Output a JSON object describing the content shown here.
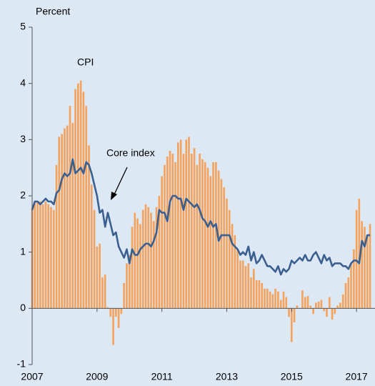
{
  "chart_data": {
    "type": "bar",
    "y_label": "Percent",
    "xlim": [
      2007,
      2017.57
    ],
    "xticks": [
      2007,
      2009,
      2011,
      2013,
      2015,
      2017
    ],
    "ylim": [
      -1,
      5
    ],
    "yticks": [
      -1,
      0,
      1,
      2,
      3,
      4,
      5
    ],
    "x": [
      2007,
      2007.083,
      2007.167,
      2007.25,
      2007.333,
      2007.417,
      2007.5,
      2007.583,
      2007.667,
      2007.75,
      2007.833,
      2007.917,
      2008,
      2008.083,
      2008.167,
      2008.25,
      2008.333,
      2008.417,
      2008.5,
      2008.583,
      2008.667,
      2008.75,
      2008.833,
      2008.917,
      2009,
      2009.083,
      2009.167,
      2009.25,
      2009.333,
      2009.417,
      2009.5,
      2009.583,
      2009.667,
      2009.75,
      2009.833,
      2009.917,
      2010,
      2010.083,
      2010.167,
      2010.25,
      2010.333,
      2010.417,
      2010.5,
      2010.583,
      2010.667,
      2010.75,
      2010.833,
      2010.917,
      2011,
      2011.083,
      2011.167,
      2011.25,
      2011.333,
      2011.417,
      2011.5,
      2011.583,
      2011.667,
      2011.75,
      2011.833,
      2011.917,
      2012,
      2012.083,
      2012.167,
      2012.25,
      2012.333,
      2012.417,
      2012.5,
      2012.583,
      2012.667,
      2012.75,
      2012.833,
      2012.917,
      2013,
      2013.083,
      2013.167,
      2013.25,
      2013.333,
      2013.417,
      2013.5,
      2013.583,
      2013.667,
      2013.75,
      2013.833,
      2013.917,
      2014,
      2014.083,
      2014.167,
      2014.25,
      2014.333,
      2014.417,
      2014.5,
      2014.583,
      2014.667,
      2014.75,
      2014.833,
      2014.917,
      2015,
      2015.083,
      2015.167,
      2015.25,
      2015.333,
      2015.417,
      2015.5,
      2015.583,
      2015.667,
      2015.75,
      2015.833,
      2015.917,
      2016,
      2016.083,
      2016.167,
      2016.25,
      2016.333,
      2016.417,
      2016.5,
      2016.583,
      2016.667,
      2016.75,
      2016.833,
      2016.917,
      2017,
      2017.083,
      2017.167,
      2017.25,
      2017.333,
      2017.417
    ],
    "series": [
      {
        "name": "CPI",
        "type": "bar",
        "color": "#f4a35e",
        "values": [
          1.8,
          1.9,
          1.9,
          1.9,
          1.85,
          1.9,
          1.85,
          1.8,
          1.75,
          2.55,
          3.05,
          3.1,
          3.2,
          3.25,
          3.6,
          3.3,
          3.9,
          4.0,
          4.05,
          3.85,
          3.6,
          2.9,
          2.2,
          1.75,
          1.1,
          1.15,
          0.55,
          0.6,
          0.02,
          -0.15,
          -0.65,
          -0.15,
          -0.35,
          -0.1,
          0.45,
          0.8,
          0.95,
          1.45,
          1.7,
          1.6,
          1.5,
          1.75,
          1.85,
          1.8,
          1.7,
          1.55,
          1.8,
          2.0,
          2.35,
          2.55,
          2.7,
          2.8,
          2.75,
          2.6,
          2.95,
          3.0,
          2.75,
          3.0,
          3.05,
          2.75,
          2.85,
          2.55,
          2.75,
          2.65,
          2.6,
          2.5,
          2.35,
          2.6,
          2.6,
          2.45,
          2.3,
          2.15,
          1.95,
          1.75,
          1.5,
          1.3,
          1.05,
          0.85,
          0.85,
          0.75,
          0.8,
          0.55,
          0.7,
          0.5,
          0.5,
          0.45,
          0.35,
          0.35,
          0.3,
          0.25,
          0.35,
          0.3,
          0.15,
          0.3,
          0.2,
          -0.15,
          -0.6,
          -0.25,
          0.05,
          0.0,
          0.32,
          0.2,
          0.22,
          0.05,
          -0.1,
          0.1,
          0.12,
          0.15,
          -0.05,
          -0.15,
          0.2,
          -0.2,
          -0.1,
          0.05,
          0.1,
          0.25,
          0.45,
          0.55,
          0.8,
          1.05,
          1.75,
          1.95,
          1.55,
          1.45,
          1.3,
          1.5
        ]
      },
      {
        "name": "Core index",
        "type": "line",
        "color": "#3b6090",
        "values": [
          1.75,
          1.9,
          1.9,
          1.85,
          1.9,
          1.95,
          1.9,
          1.9,
          1.85,
          2.05,
          2.1,
          2.3,
          2.4,
          2.35,
          2.4,
          2.65,
          2.4,
          2.45,
          2.5,
          2.4,
          2.6,
          2.55,
          2.4,
          2.2,
          2.0,
          1.7,
          1.75,
          1.45,
          1.7,
          1.5,
          1.3,
          1.35,
          1.1,
          1.0,
          0.9,
          1.05,
          0.8,
          1.05,
          0.95,
          0.95,
          1.05,
          1.1,
          1.15,
          1.15,
          1.1,
          1.2,
          1.35,
          1.75,
          1.7,
          1.7,
          1.55,
          1.9,
          2.0,
          2.0,
          1.95,
          1.95,
          1.75,
          1.95,
          1.9,
          1.85,
          1.8,
          1.85,
          1.75,
          1.6,
          1.55,
          1.45,
          1.55,
          1.45,
          1.5,
          1.2,
          1.3,
          1.3,
          1.3,
          1.3,
          1.15,
          1.1,
          1.05,
          0.95,
          1.0,
          0.95,
          1.1,
          0.85,
          1.0,
          0.8,
          0.85,
          0.95,
          0.85,
          0.75,
          0.75,
          0.7,
          0.65,
          0.75,
          0.6,
          0.7,
          0.65,
          0.7,
          0.85,
          0.8,
          0.85,
          0.9,
          0.85,
          0.95,
          0.85,
          0.85,
          0.95,
          1.0,
          0.9,
          0.8,
          0.95,
          0.85,
          0.9,
          0.75,
          0.8,
          0.8,
          0.8,
          0.75,
          0.75,
          0.7,
          0.8,
          0.85,
          0.85,
          0.8,
          1.2,
          1.1,
          1.3,
          1.3
        ]
      }
    ]
  }
}
